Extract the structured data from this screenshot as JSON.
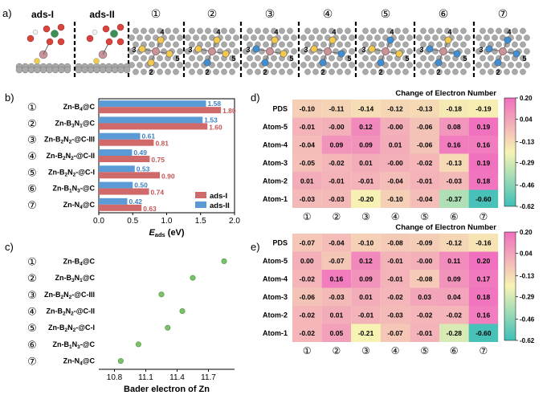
{
  "panel_labels": {
    "a": "a)",
    "b": "b)",
    "c": "c)",
    "d": "d)",
    "e": "e)"
  },
  "panel_a": {
    "ads_labels": [
      "ads-I",
      "ads-II"
    ],
    "structures": [
      "①",
      "②",
      "③",
      "④",
      "⑤",
      "⑥",
      "⑦"
    ],
    "atom_numbers": [
      "2",
      "3",
      "4",
      "5"
    ],
    "colors": {
      "carbon": "#a9a9a9",
      "boron": "#f2c94c",
      "nitrogen": "#3f8fd6",
      "zinc": "#c9939a",
      "oxygen": "#d9453d",
      "phosphorus": "#3f8f55",
      "hydrogen": "#f2f2f2"
    }
  },
  "chart_b": {
    "type": "bar",
    "categories": [
      "Zn-B4@C",
      "Zn-B3N1@C",
      "Zn-B2N2-@C-III",
      "Zn-B2N2-@C-II",
      "Zn-B2N2-@C-I",
      "Zn-B1N3-@C",
      "Zn-N4@C"
    ],
    "category_labels": [
      {
        "num": "①",
        "pre": "Zn-B",
        "s1": "4",
        "mid": "@C",
        "s2": "",
        "post": ""
      },
      {
        "num": "②",
        "pre": "Zn-B",
        "s1": "3",
        "mid": "N",
        "s2": "1",
        "post": "@C"
      },
      {
        "num": "③",
        "pre": "Zn-B",
        "s1": "2",
        "mid": "N",
        "s2": "2",
        "post": "-@C-III"
      },
      {
        "num": "④",
        "pre": "Zn-B",
        "s1": "2",
        "mid": "N",
        "s2": "2",
        "post": "-@C-II"
      },
      {
        "num": "⑤",
        "pre": "Zn-B",
        "s1": "2",
        "mid": "N",
        "s2": "2",
        "post": "-@C-I"
      },
      {
        "num": "⑥",
        "pre": "Zn-B",
        "s1": "1",
        "mid": "N",
        "s2": "3",
        "post": "-@C"
      },
      {
        "num": "⑦",
        "pre": "Zn-N",
        "s1": "4",
        "mid": "@C",
        "s2": "",
        "post": ""
      }
    ],
    "series": [
      {
        "name": "ads-I",
        "values": [
          1.8,
          1.6,
          0.81,
          0.75,
          0.9,
          0.74,
          0.63
        ],
        "color": "#d06a6a"
      },
      {
        "name": "ads-II",
        "values": [
          1.58,
          1.53,
          0.61,
          0.49,
          0.53,
          0.5,
          0.42
        ],
        "color": "#5b9bd5"
      }
    ],
    "xlabel": "E",
    "xlabel_sub": "ads",
    "xlabel_unit": " (eV)",
    "xlim": [
      0,
      2.0
    ],
    "xticks": [
      0.0,
      0.5,
      1.0,
      1.5,
      2.0
    ],
    "xtick_labels": [
      "0.0",
      "0.5",
      "1.0",
      "1.5",
      "2.0"
    ],
    "legend_position": "bottom-right"
  },
  "chart_c": {
    "type": "scatter",
    "categories": [
      "Zn-B4@C",
      "Zn-B3N1@C",
      "Zn-B2N2-@C-III",
      "Zn-B2N2-@C-II",
      "Zn-B2N2-@C-I",
      "Zn-B1N3-@C",
      "Zn-N4@C"
    ],
    "values": [
      11.85,
      11.55,
      11.25,
      11.45,
      11.31,
      11.03,
      10.86
    ],
    "color": "#7cc26a",
    "xlabel": "Bader electron of Zn",
    "xlim": [
      10.65,
      11.95
    ],
    "xticks": [
      10.8,
      11.1,
      11.4,
      11.7
    ],
    "xtick_labels": [
      "10.8",
      "11.1",
      "11.4",
      "11.7"
    ]
  },
  "heatmap_common": {
    "title": "Change of Electron  Number",
    "rows": [
      "PDS",
      "Atom-5",
      "Atom-4",
      "Atom-3",
      "Atom-2",
      "Atom-1"
    ],
    "cols": [
      "①",
      "②",
      "③",
      "④",
      "⑤",
      "⑥",
      "⑦"
    ],
    "vmin": -0.62,
    "vmax": 0.2,
    "colorbar_ticks": [
      0.2,
      0.04,
      -0.13,
      -0.29,
      -0.46,
      -0.62
    ],
    "colorbar_labels": [
      "0.20",
      "0.04",
      "-0.13",
      "-0.29",
      "-0.46",
      "-0.62"
    ],
    "colors": [
      "#3fbfb8",
      "#f7f4b3",
      "#f06fbf"
    ]
  },
  "chart_d": {
    "type": "heatmap",
    "values": [
      [
        -0.1,
        -0.11,
        -0.14,
        -0.12,
        -0.13,
        -0.18,
        -0.19
      ],
      [
        -0.01,
        -0.0,
        0.12,
        -0.0,
        -0.06,
        0.08,
        0.19
      ],
      [
        -0.04,
        0.09,
        0.09,
        0.01,
        -0.06,
        0.16,
        0.16
      ],
      [
        -0.05,
        -0.02,
        0.01,
        -0.0,
        -0.02,
        -0.13,
        0.19
      ],
      [
        0.01,
        -0.01,
        -0.01,
        -0.04,
        -0.01,
        -0.03,
        0.18
      ],
      [
        -0.03,
        -0.03,
        -0.2,
        -0.1,
        -0.04,
        -0.37,
        -0.6
      ]
    ],
    "labels": [
      [
        "-0.10",
        "-0.11",
        "-0.14",
        "-0.12",
        "-0.13",
        "-0.18",
        "-0.19"
      ],
      [
        "-0.01",
        "-0.00",
        "0.12",
        "-0.00",
        "-0.06",
        "0.08",
        "0.19"
      ],
      [
        "-0.04",
        "0.09",
        "0.09",
        "0.01",
        "-0.06",
        "0.16",
        "0.16"
      ],
      [
        "-0.05",
        "-0.02",
        "0.01",
        "-0.00",
        "-0.02",
        "-0.13",
        "0.19"
      ],
      [
        "0.01",
        "-0.01",
        "-0.01",
        "-0.04",
        "-0.01",
        "-0.03",
        "0.18"
      ],
      [
        "-0.03",
        "-0.03",
        "-0.20",
        "-0.10",
        "-0.04",
        "-0.37",
        "-0.60"
      ]
    ]
  },
  "chart_e": {
    "type": "heatmap",
    "values": [
      [
        -0.07,
        -0.04,
        -0.1,
        -0.08,
        -0.09,
        -0.12,
        -0.16
      ],
      [
        0.0,
        -0.07,
        0.12,
        -0.01,
        -0.0,
        0.11,
        0.2
      ],
      [
        -0.02,
        0.16,
        0.09,
        -0.01,
        -0.08,
        0.09,
        0.17
      ],
      [
        -0.06,
        -0.03,
        0.01,
        -0.02,
        0.03,
        0.04,
        0.18
      ],
      [
        -0.02,
        0.01,
        -0.01,
        -0.03,
        -0.02,
        -0.02,
        0.16
      ],
      [
        -0.02,
        0.05,
        -0.21,
        -0.07,
        -0.01,
        -0.28,
        -0.6
      ]
    ],
    "labels": [
      [
        "-0.07",
        "-0.04",
        "-0.10",
        "-0.08",
        "-0.09",
        "-0.12",
        "-0.16"
      ],
      [
        "0.00",
        "-0.07",
        "0.12",
        "-0.01",
        "-0.00",
        "0.11",
        "0.20"
      ],
      [
        "-0.02",
        "0.16",
        "0.09",
        "-0.01",
        "-0.08",
        "0.09",
        "0.17"
      ],
      [
        "-0.06",
        "-0.03",
        "0.01",
        "-0.02",
        "0.03",
        "0.04",
        "0.18"
      ],
      [
        "-0.02",
        "0.01",
        "-0.01",
        "-0.03",
        "-0.02",
        "-0.02",
        "0.16"
      ],
      [
        "-0.02",
        "0.05",
        "-0.21",
        "-0.07",
        "-0.01",
        "-0.28",
        "-0.60"
      ]
    ]
  }
}
